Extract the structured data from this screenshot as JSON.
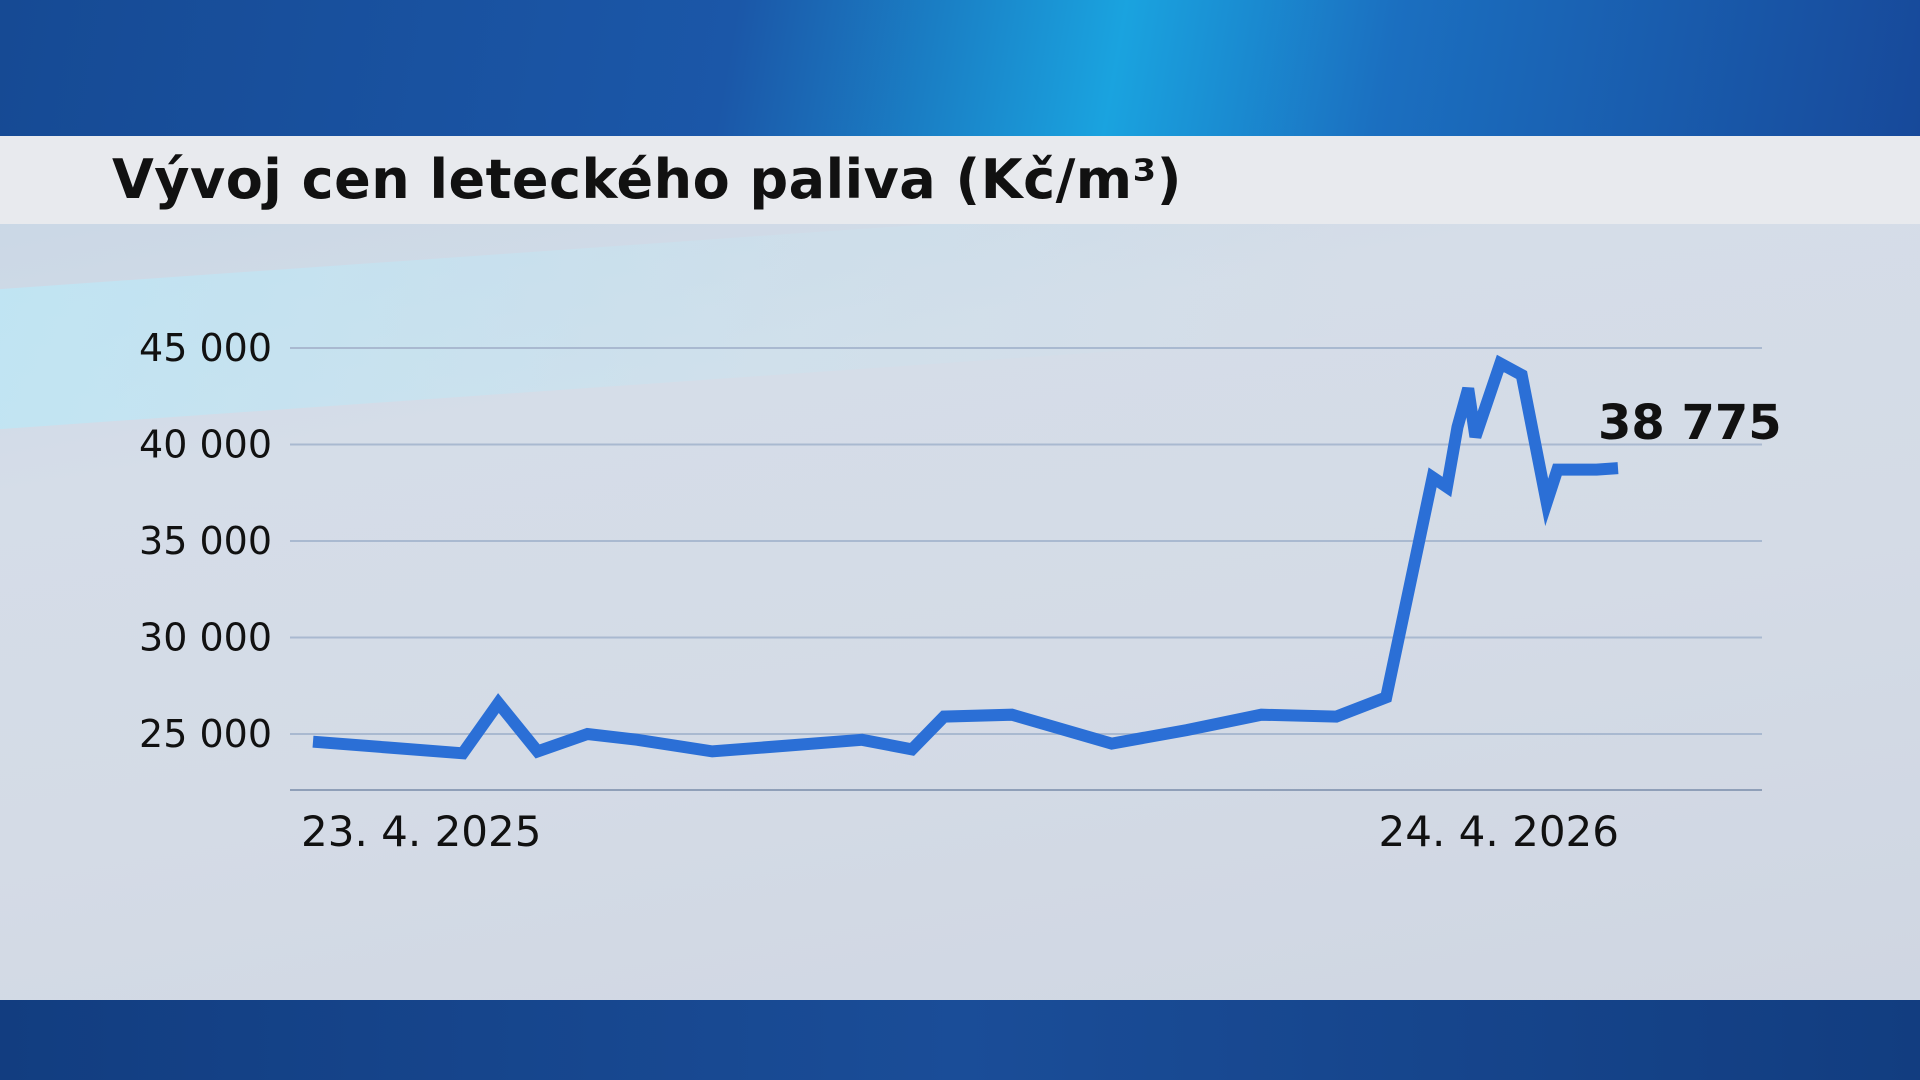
{
  "chart_data": {
    "type": "line",
    "title": "Vývoj cen leteckého paliva (Kč/m³)",
    "ylim": [
      22000,
      45000
    ],
    "yticks": [
      25000,
      30000,
      35000,
      40000,
      45000
    ],
    "ytick_labels": [
      "25 000",
      "30 000",
      "35 000",
      "40 000",
      "45 000"
    ],
    "xlim": [
      "2025-04-23",
      "2026-04-24"
    ],
    "xtick_labels": [
      "23. 4. 2025",
      "24. 4. 2026"
    ],
    "grid": true,
    "line_color": "#2b6fd6",
    "last_value_label": "38 775",
    "series": [
      {
        "x": [
          "2025-04-23",
          "2025-05-14",
          "2025-06-04",
          "2025-06-14",
          "2025-06-25",
          "2025-07-09",
          "2025-07-23",
          "2025-08-13",
          "2025-09-03",
          "2025-09-24",
          "2025-10-08",
          "2025-10-17",
          "2025-11-05",
          "2025-12-03",
          "2025-12-24",
          "2026-01-14",
          "2026-02-04",
          "2026-02-18",
          "2026-03-03",
          "2026-03-07",
          "2026-03-10",
          "2026-03-13",
          "2026-03-15",
          "2026-03-22",
          "2026-03-28",
          "2026-04-04",
          "2026-04-07",
          "2026-04-18",
          "2026-04-24"
        ],
        "y": [
          24600,
          24300,
          24000,
          26600,
          24100,
          25000,
          24700,
          24100,
          24400,
          24700,
          24200,
          25900,
          26000,
          24500,
          25200,
          26000,
          25900,
          26900,
          38300,
          37800,
          40900,
          42900,
          40400,
          44200,
          43600,
          37000,
          38700,
          38700,
          38775
        ]
      }
    ]
  }
}
